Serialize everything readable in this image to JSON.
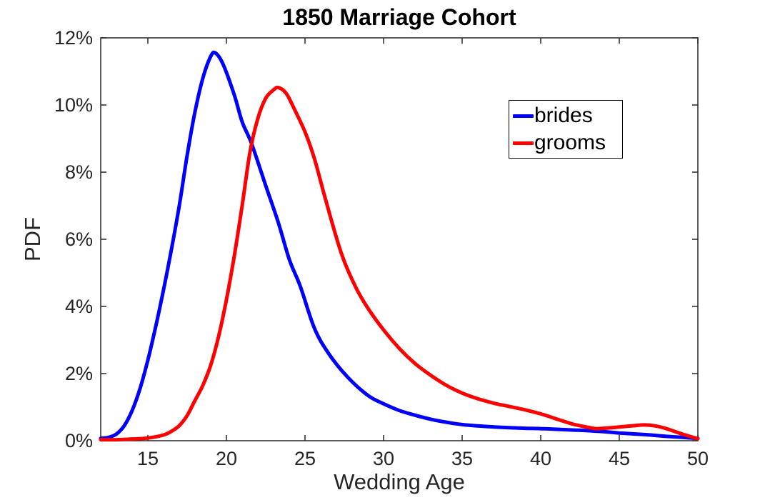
{
  "chart_data": {
    "type": "line",
    "title": "1850 Marriage Cohort",
    "xlabel": "Wedding Age",
    "ylabel": "PDF",
    "xlim": [
      12,
      50
    ],
    "ylim": [
      0,
      12
    ],
    "xticks": [
      15,
      20,
      25,
      30,
      35,
      40,
      45,
      50
    ],
    "xtick_labels": [
      "15",
      "20",
      "25",
      "30",
      "35",
      "40",
      "45",
      "50"
    ],
    "yticks": [
      0,
      2,
      4,
      6,
      8,
      10,
      12
    ],
    "ytick_labels": [
      "0%",
      "2%",
      "4%",
      "6%",
      "8%",
      "10%",
      "12%"
    ],
    "grid": false,
    "legend_position": "upper right",
    "axis_color": "#262626",
    "series": [
      {
        "name": "brides",
        "color": "#0000FF",
        "line_width": 5,
        "points": [
          [
            12,
            0.07
          ],
          [
            12.5,
            0.1
          ],
          [
            13,
            0.2
          ],
          [
            13.5,
            0.45
          ],
          [
            14,
            0.9
          ],
          [
            14.5,
            1.55
          ],
          [
            15,
            2.4
          ],
          [
            15.5,
            3.4
          ],
          [
            16,
            4.5
          ],
          [
            16.5,
            5.7
          ],
          [
            17,
            7.0
          ],
          [
            17.5,
            8.5
          ],
          [
            18,
            9.8
          ],
          [
            18.5,
            10.8
          ],
          [
            19,
            11.45
          ],
          [
            19.3,
            11.55
          ],
          [
            19.8,
            11.2
          ],
          [
            20.5,
            10.3
          ],
          [
            21,
            9.5
          ],
          [
            21.6,
            8.85
          ],
          [
            22.5,
            7.6
          ],
          [
            23.3,
            6.5
          ],
          [
            24,
            5.4
          ],
          [
            24.7,
            4.6
          ],
          [
            25.6,
            3.35
          ],
          [
            26.5,
            2.6
          ],
          [
            27.7,
            1.9
          ],
          [
            29,
            1.35
          ],
          [
            30,
            1.1
          ],
          [
            31,
            0.9
          ],
          [
            32,
            0.76
          ],
          [
            33,
            0.64
          ],
          [
            34,
            0.55
          ],
          [
            35,
            0.48
          ],
          [
            36,
            0.44
          ],
          [
            37,
            0.41
          ],
          [
            38,
            0.39
          ],
          [
            39,
            0.37
          ],
          [
            40,
            0.36
          ],
          [
            41,
            0.34
          ],
          [
            42,
            0.32
          ],
          [
            43,
            0.3
          ],
          [
            44,
            0.27
          ],
          [
            45,
            0.23
          ],
          [
            46,
            0.2
          ],
          [
            47,
            0.17
          ],
          [
            48,
            0.13
          ],
          [
            49,
            0.1
          ],
          [
            50,
            0.07
          ]
        ]
      },
      {
        "name": "grooms",
        "color": "#FF0000",
        "line_width": 5,
        "points": [
          [
            12,
            0.03
          ],
          [
            13,
            0.03
          ],
          [
            14,
            0.05
          ],
          [
            15,
            0.08
          ],
          [
            16,
            0.17
          ],
          [
            16.5,
            0.28
          ],
          [
            17,
            0.45
          ],
          [
            17.5,
            0.75
          ],
          [
            18,
            1.2
          ],
          [
            18.5,
            1.65
          ],
          [
            19,
            2.25
          ],
          [
            19.5,
            3.1
          ],
          [
            20,
            4.2
          ],
          [
            20.5,
            5.5
          ],
          [
            21,
            7.0
          ],
          [
            21.5,
            8.6
          ],
          [
            22,
            9.6
          ],
          [
            22.5,
            10.2
          ],
          [
            23,
            10.45
          ],
          [
            23.3,
            10.52
          ],
          [
            23.8,
            10.35
          ],
          [
            24.3,
            9.9
          ],
          [
            25,
            9.2
          ],
          [
            25.6,
            8.4
          ],
          [
            26.3,
            7.2
          ],
          [
            27.3,
            5.6
          ],
          [
            28.2,
            4.6
          ],
          [
            29,
            3.95
          ],
          [
            30,
            3.3
          ],
          [
            31,
            2.75
          ],
          [
            32,
            2.3
          ],
          [
            33,
            1.95
          ],
          [
            34,
            1.65
          ],
          [
            35,
            1.42
          ],
          [
            36,
            1.25
          ],
          [
            37,
            1.12
          ],
          [
            38,
            1.02
          ],
          [
            39,
            0.92
          ],
          [
            40,
            0.8
          ],
          [
            41,
            0.65
          ],
          [
            42,
            0.5
          ],
          [
            43,
            0.4
          ],
          [
            43.5,
            0.36
          ],
          [
            44,
            0.37
          ],
          [
            45,
            0.41
          ],
          [
            46,
            0.45
          ],
          [
            46.6,
            0.47
          ],
          [
            47.3,
            0.44
          ],
          [
            48,
            0.36
          ],
          [
            49,
            0.2
          ],
          [
            50,
            0.06
          ]
        ]
      }
    ]
  },
  "legend": {
    "entries": [
      {
        "label": "brides",
        "color": "#0000FF"
      },
      {
        "label": "grooms",
        "color": "#FF0000"
      }
    ]
  }
}
